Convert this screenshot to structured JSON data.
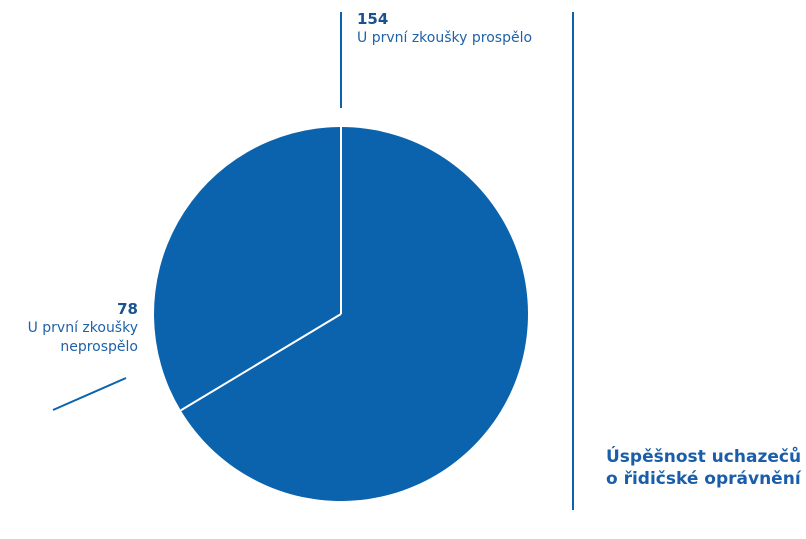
{
  "title": "Úspěšnost uchazečů o řidičské oprávnění",
  "colors": {
    "slice": "#0b63ad",
    "line": "#0b63ad",
    "separator": "#ffffff"
  },
  "chart_data": {
    "type": "pie",
    "title": "Úspěšnost uchazečů o řidičské oprávnění",
    "slices": [
      {
        "label": "U první zkoušky prospělo",
        "value": 154
      },
      {
        "label": "U první zkoušky neprospělo",
        "value": 78
      }
    ]
  }
}
